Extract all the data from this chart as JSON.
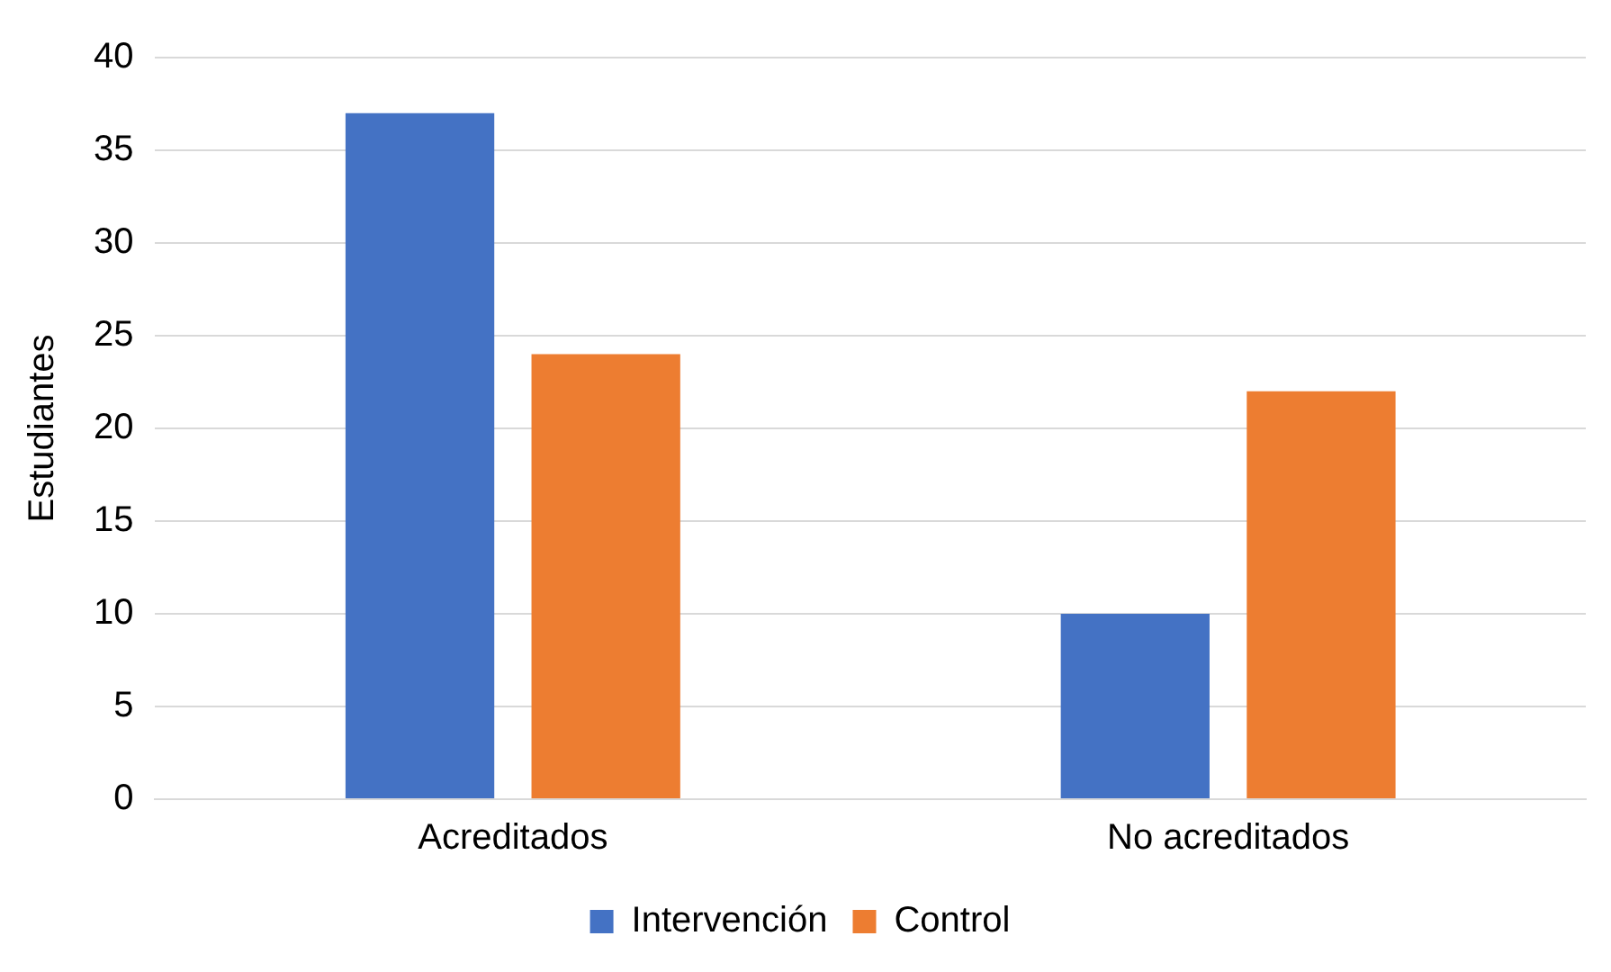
{
  "chart_data": {
    "type": "bar",
    "ylabel": "Estudiantes",
    "categories": [
      "Acreditados",
      "No acreditados"
    ],
    "series": [
      {
        "name": "Intervención",
        "color": "#4472c4",
        "values": [
          37,
          10
        ]
      },
      {
        "name": "Control",
        "color": "#ed7d31",
        "values": [
          24,
          22
        ]
      }
    ],
    "ylim": [
      0,
      40
    ],
    "yticks": [
      0,
      5,
      10,
      15,
      20,
      25,
      30,
      35,
      40
    ],
    "grid": "y",
    "legend": "bottom"
  }
}
